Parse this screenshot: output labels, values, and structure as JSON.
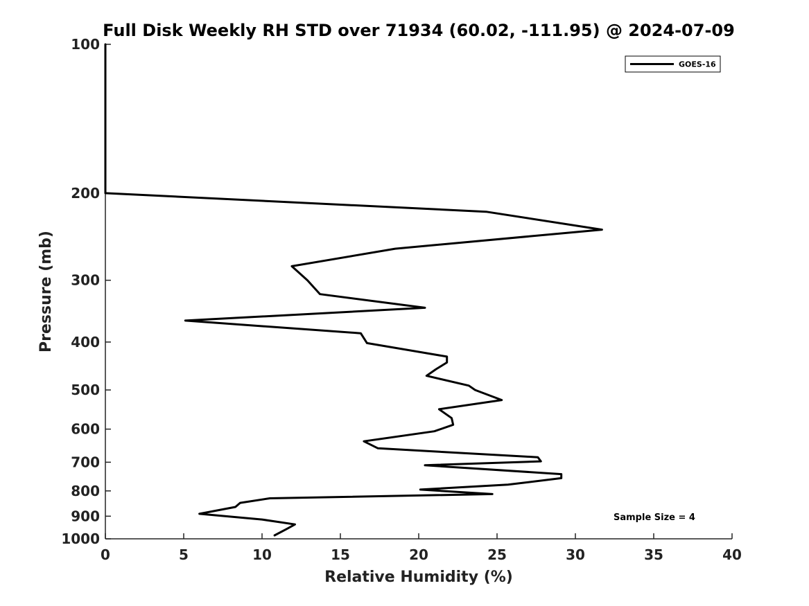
{
  "chart_data": {
    "type": "line",
    "title": "Full Disk Weekly RH STD over 71934 (60.02, -111.95) @ 2024-07-09",
    "xlabel": "Relative Humidity (%)",
    "ylabel": "Pressure (mb)",
    "xlim": [
      0,
      40
    ],
    "ylim": [
      100,
      1000
    ],
    "yscale": "log",
    "reversed_y": true,
    "grid": false,
    "xticks": [
      0,
      5,
      10,
      15,
      20,
      25,
      30,
      35,
      40
    ],
    "yticks": [
      100,
      200,
      300,
      400,
      500,
      600,
      700,
      800,
      900,
      1000
    ],
    "legend_position": "top-right",
    "series": [
      {
        "name": "GOES-16",
        "color": "#000000",
        "points": [
          {
            "x": 0,
            "y": 100
          },
          {
            "x": 0,
            "y": 125
          },
          {
            "x": 0,
            "y": 150
          },
          {
            "x": 0,
            "y": 175
          },
          {
            "x": 0,
            "y": 200
          },
          {
            "x": 24.3,
            "y": 218
          },
          {
            "x": 31.7,
            "y": 237
          },
          {
            "x": 18.5,
            "y": 259
          },
          {
            "x": 11.9,
            "y": 281
          },
          {
            "x": 12.9,
            "y": 300
          },
          {
            "x": 13.7,
            "y": 320
          },
          {
            "x": 20.4,
            "y": 341
          },
          {
            "x": 5.1,
            "y": 362
          },
          {
            "x": 16.3,
            "y": 384
          },
          {
            "x": 16.7,
            "y": 402
          },
          {
            "x": 21.8,
            "y": 428
          },
          {
            "x": 21.8,
            "y": 440
          },
          {
            "x": 21.1,
            "y": 454
          },
          {
            "x": 20.5,
            "y": 468
          },
          {
            "x": 23.2,
            "y": 490
          },
          {
            "x": 23.6,
            "y": 500
          },
          {
            "x": 25.3,
            "y": 524
          },
          {
            "x": 21.3,
            "y": 547
          },
          {
            "x": 22.1,
            "y": 570
          },
          {
            "x": 22.2,
            "y": 588
          },
          {
            "x": 21.0,
            "y": 606
          },
          {
            "x": 16.5,
            "y": 635
          },
          {
            "x": 17.4,
            "y": 656
          },
          {
            "x": 27.6,
            "y": 684
          },
          {
            "x": 27.8,
            "y": 697
          },
          {
            "x": 20.4,
            "y": 710
          },
          {
            "x": 29.1,
            "y": 740
          },
          {
            "x": 29.1,
            "y": 754
          },
          {
            "x": 25.7,
            "y": 777
          },
          {
            "x": 20.1,
            "y": 795
          },
          {
            "x": 24.7,
            "y": 812
          },
          {
            "x": 10.5,
            "y": 828
          },
          {
            "x": 8.6,
            "y": 846
          },
          {
            "x": 8.3,
            "y": 862
          },
          {
            "x": 6.0,
            "y": 890
          },
          {
            "x": 10.0,
            "y": 914
          },
          {
            "x": 12.1,
            "y": 935
          },
          {
            "x": 11.6,
            "y": 954
          },
          {
            "x": 10.8,
            "y": 984
          }
        ]
      }
    ],
    "annotation": "Sample Size = 4"
  }
}
